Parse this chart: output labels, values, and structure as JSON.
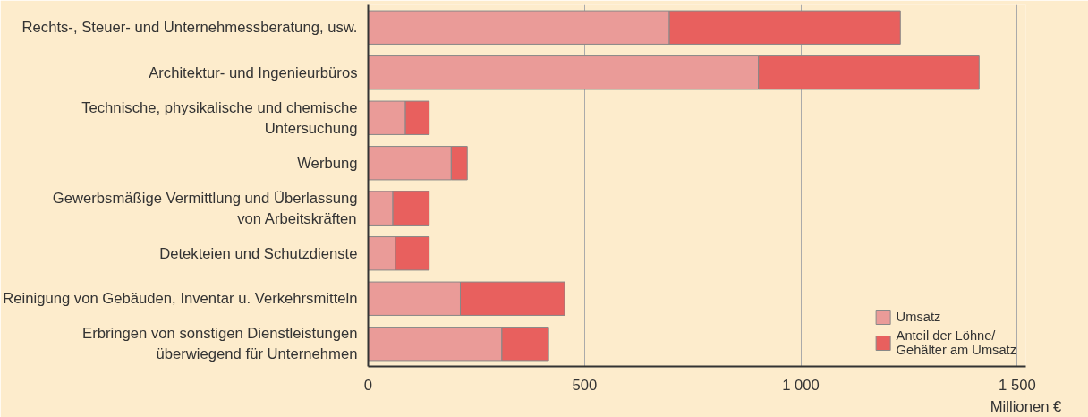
{
  "chart_data": {
    "type": "bar",
    "orientation": "horizontal",
    "stacked": true,
    "categories": [
      "Rechts-, Steuer- und Unternehmessberatung, usw.",
      "Architektur- und Ingenieurbüros",
      "Technische, physikalische und chemische\nUntersuchung",
      "Werbung",
      "Gewerbsmäßige Vermittlung und Überlassung\nvon Arbeitskräften",
      "Detekteien und Schutzdienste",
      "Reinigung von Gebäuden, Inventar u. Verkehrsmitteln",
      "Erbringen von sonstigen Dienstleistungen\nüberwiegend für Unternehmen"
    ],
    "series": [
      {
        "name": "Umsatz",
        "color": "#ea9b98",
        "values": [
          696,
          902,
          86,
          192,
          57,
          63,
          213,
          309
        ]
      },
      {
        "name": "Anteil der Löhne/\nGehälter am Umsatz",
        "color": "#e8605e",
        "values": [
          534,
          510,
          55,
          37,
          84,
          78,
          241,
          108
        ]
      }
    ],
    "xlabel": "Millionen €",
    "xlim": [
      0,
      1520
    ],
    "xticks": [
      0,
      500,
      {
        "value": 1000,
        "label": "1 000"
      },
      {
        "value": 1500,
        "label": "1 500"
      }
    ],
    "grid": "x",
    "legend": "bottom right"
  }
}
